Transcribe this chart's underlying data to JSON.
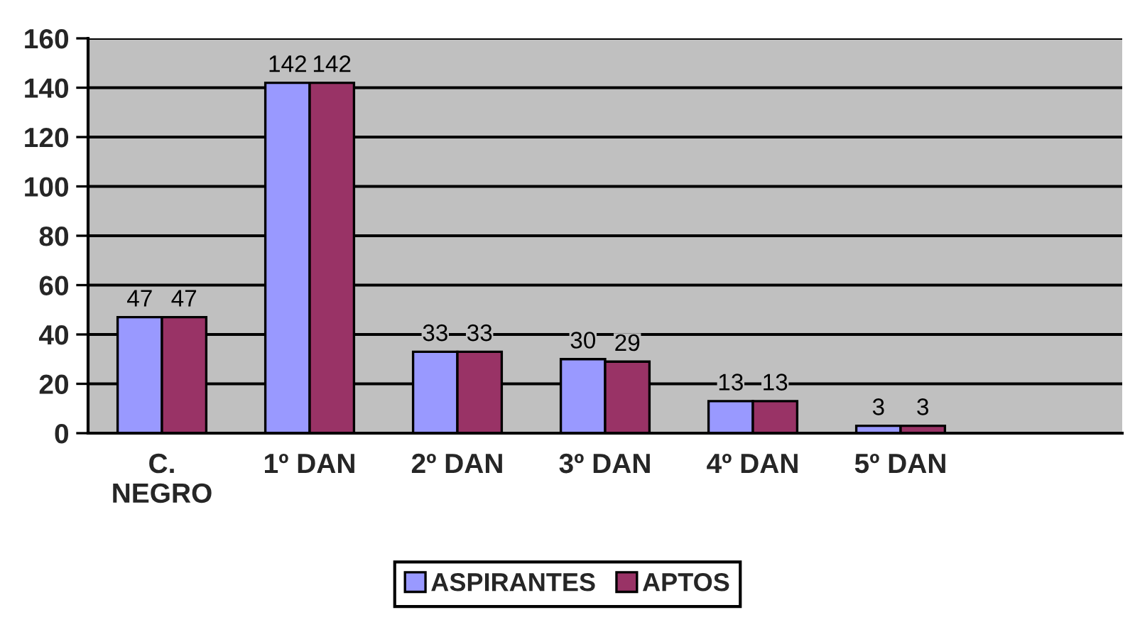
{
  "chart_data": {
    "type": "bar",
    "categories": [
      "C. NEGRO",
      "1º DAN",
      "2º DAN",
      "3º DAN",
      "4º DAN",
      "5º DAN",
      null
    ],
    "series": [
      {
        "name": "ASPIRANTES",
        "color": "#9999ff",
        "values": [
          47,
          142,
          33,
          30,
          13,
          3,
          null
        ]
      },
      {
        "name": "APTOS",
        "color": "#993366",
        "values": [
          47,
          142,
          33,
          29,
          13,
          3,
          null
        ]
      }
    ],
    "ylim": [
      0,
      160
    ],
    "yticks": [
      0,
      20,
      40,
      60,
      80,
      100,
      120,
      140,
      160
    ],
    "grid": "y",
    "legend": "bottom",
    "data_labels": true
  }
}
